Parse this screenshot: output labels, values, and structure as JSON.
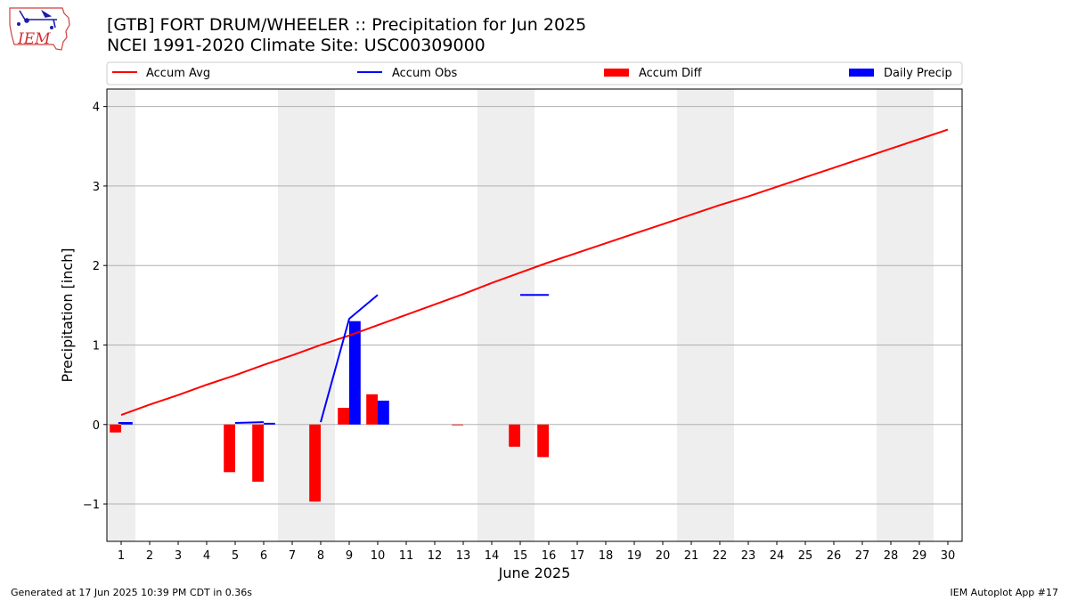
{
  "header": {
    "title_line1": "[GTB] FORT DRUM/WHEELER :: Precipitation for Jun 2025",
    "title_line2": "NCEI 1991-2020 Climate Site: USC00309000",
    "logo_text": "IEM"
  },
  "footer": {
    "generated": "Generated at 17 Jun 2025 10:39 PM CDT in 0.36s",
    "app": "IEM Autoplot App #17"
  },
  "colors": {
    "accum_avg": "#ff0000",
    "accum_obs": "#0000ff",
    "accum_diff": "#ff0000",
    "daily_precip": "#0000ff",
    "weekend_shade": "#eeeeee",
    "grid": "#b0b0b0"
  },
  "chart_data": {
    "type": "bar",
    "xlabel": "June 2025",
    "ylabel": "Precipitation [inch]",
    "xlim": [
      0.5,
      30.5
    ],
    "ylim": [
      -1.47,
      4.22
    ],
    "yticks": [
      -1,
      0,
      1,
      2,
      3,
      4
    ],
    "ytick_labels": [
      "−1",
      "0",
      "1",
      "2",
      "3",
      "4"
    ],
    "days": [
      1,
      2,
      3,
      4,
      5,
      6,
      7,
      8,
      9,
      10,
      11,
      12,
      13,
      14,
      15,
      16,
      17,
      18,
      19,
      20,
      21,
      22,
      23,
      24,
      25,
      26,
      27,
      28,
      29,
      30
    ],
    "weekend_spans": [
      [
        0.5,
        1.5
      ],
      [
        6.5,
        8.5
      ],
      [
        13.5,
        15.5
      ],
      [
        20.5,
        22.5
      ],
      [
        27.5,
        29.5
      ]
    ],
    "legend": [
      "Accum Avg",
      "Accum Obs",
      "Accum Diff",
      "Daily Precip"
    ],
    "series": [
      {
        "name": "Accum Avg",
        "kind": "line",
        "values": [
          0.12,
          0.25,
          0.37,
          0.5,
          0.62,
          0.75,
          0.87,
          1.0,
          1.12,
          1.25,
          1.38,
          1.51,
          1.64,
          1.78,
          1.91,
          2.04,
          2.16,
          2.28,
          2.4,
          2.52,
          2.64,
          2.76,
          2.87,
          2.99,
          3.11,
          3.23,
          3.35,
          3.47,
          3.59,
          3.71
        ]
      },
      {
        "name": "Accum Obs",
        "kind": "line",
        "segments": [
          {
            "x": [
              0.9,
              1.4
            ],
            "y": [
              0.02,
              0.02
            ]
          },
          {
            "x": [
              5.0,
              6.0
            ],
            "y": [
              0.02,
              0.03
            ]
          },
          {
            "x": [
              6.0,
              6.4
            ],
            "y": [
              0.01,
              0.01
            ]
          },
          {
            "x": [
              8.0,
              9.0,
              10.0
            ],
            "y": [
              0.03,
              1.33,
              1.63
            ]
          },
          {
            "x": [
              15.0,
              16.0
            ],
            "y": [
              1.63,
              1.63
            ]
          }
        ]
      },
      {
        "name": "Accum Diff",
        "kind": "bar",
        "days": [
          1,
          5,
          6,
          8,
          9,
          10,
          13,
          15,
          16
        ],
        "values": [
          -0.1,
          -0.6,
          -0.72,
          -0.97,
          0.21,
          0.38,
          -0.01,
          -0.28,
          -0.41
        ]
      },
      {
        "name": "Daily Precip",
        "kind": "bar",
        "days": [
          1,
          9,
          10
        ],
        "values": [
          0.01,
          1.3,
          0.3
        ]
      }
    ]
  }
}
